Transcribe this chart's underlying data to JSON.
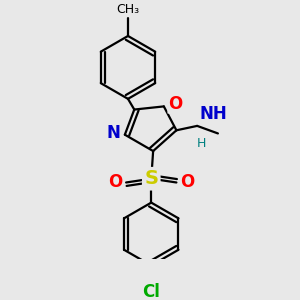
{
  "bg_color": "#e8e8e8",
  "bond_color": "#000000",
  "bond_width": 1.6,
  "atom_colors": {
    "O": "#ff0000",
    "N": "#0000cc",
    "S": "#cccc00",
    "Cl": "#00aa00",
    "H": "#008080",
    "C": "#000000"
  },
  "xlim": [
    0.2,
    3.2
  ],
  "ylim": [
    -0.5,
    3.6
  ],
  "figsize": [
    3.0,
    3.0
  ],
  "dpi": 100,
  "r1cx": 1.35,
  "r1cy": 2.55,
  "r1r": 0.5,
  "r2cx": 1.72,
  "r2cy": -0.1,
  "r2r": 0.5,
  "C2x": 1.45,
  "C2y": 1.88,
  "O1x": 1.92,
  "O1y": 1.93,
  "C5x": 2.12,
  "C5y": 1.55,
  "C4x": 1.75,
  "C4y": 1.22,
  "N3x": 1.3,
  "N3y": 1.48,
  "Sx": 1.72,
  "Sy": 0.78,
  "OSO2Lx": 1.32,
  "OSO2Ly": 0.72,
  "OSO2Rx": 2.12,
  "OSO2Ry": 0.72,
  "NHx": 2.45,
  "NHy": 1.62,
  "Hx": 2.52,
  "Hy": 1.44,
  "Et1x": 2.78,
  "Et1y": 1.5,
  "font_size_atom": 12,
  "font_size_small": 9,
  "font_size_ch3": 9
}
